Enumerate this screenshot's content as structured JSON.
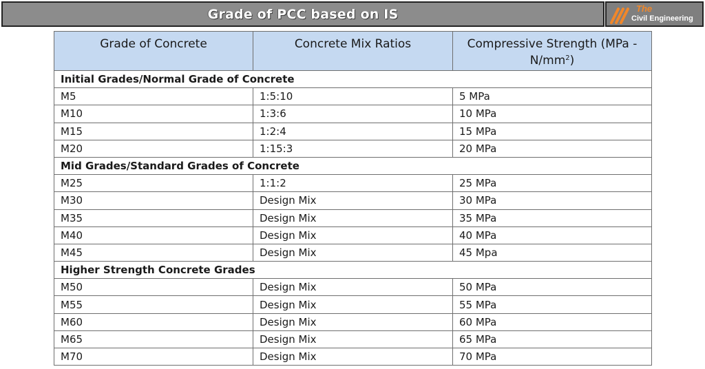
{
  "banner": {
    "title": "Grade of PCC based on IS"
  },
  "logo": {
    "line1": "The",
    "line2": "Civil Engineering"
  },
  "table": {
    "headers": [
      "Grade of Concrete",
      "Concrete Mix Ratios",
      "Compressive Strength (MPa -",
      "N/mm",
      "2",
      ")"
    ],
    "sections": [
      {
        "title": "Initial Grades/Normal Grade of Concrete",
        "rows": [
          [
            "M5",
            "1:5:10",
            "5 MPa"
          ],
          [
            "M10",
            "1:3:6",
            "10 MPa"
          ],
          [
            "M15",
            "1:2:4",
            "15 MPa"
          ],
          [
            "M20",
            "1:15:3",
            "20 MPa"
          ]
        ]
      },
      {
        "title": "Mid Grades/Standard Grades of Concrete",
        "rows": [
          [
            "M25",
            "1:1:2",
            "25 MPa"
          ],
          [
            "M30",
            "Design Mix",
            "30 MPa"
          ],
          [
            "M35",
            "Design Mix",
            "35 MPa"
          ],
          [
            "M40",
            "Design Mix",
            "40 MPa"
          ],
          [
            "M45",
            "Design Mix",
            "45 Mpa"
          ]
        ]
      },
      {
        "title": "Higher Strength Concrete Grades",
        "rows": [
          [
            "M50",
            "Design Mix",
            "50 MPa"
          ],
          [
            "M55",
            "Design Mix",
            "55 MPa"
          ],
          [
            "M60",
            "Design Mix",
            "60 MPa"
          ],
          [
            "M65",
            "Design Mix",
            "65 MPa"
          ],
          [
            "M70",
            "Design Mix",
            "70 MPa"
          ]
        ]
      }
    ]
  },
  "colors": {
    "banner_bg": "#8c8c8c",
    "header_bg": "#c5d9f1",
    "logo_accent": "#f0872a"
  }
}
